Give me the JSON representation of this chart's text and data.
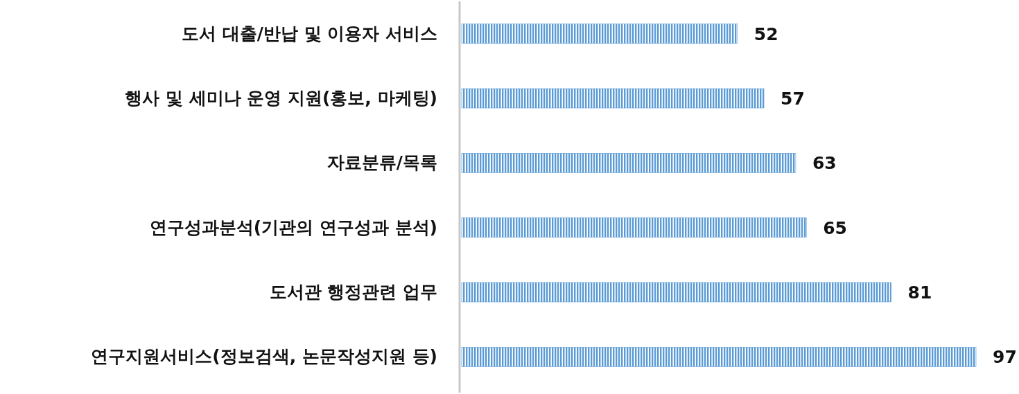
{
  "chart_data": {
    "type": "bar",
    "orientation": "horizontal",
    "categories": [
      "도서 대출/반납 및 이용자 서비스",
      "행사 및 세미나 운영 지원(홍보, 마케팅)",
      "자료분류/목록",
      "연구성과분석(기관의 연구성과 분석)",
      "도서관 행정관련 업무",
      "연구지원서비스(정보검색, 논문작성지원 등)"
    ],
    "values": [
      52,
      57,
      63,
      65,
      81,
      97
    ],
    "colors": [
      "#5b9bd5",
      "#5b9bd5",
      "#5b9bd5",
      "#5b9bd5",
      "#5b9bd5",
      "#5b9bd5"
    ],
    "data_labels": true
  }
}
